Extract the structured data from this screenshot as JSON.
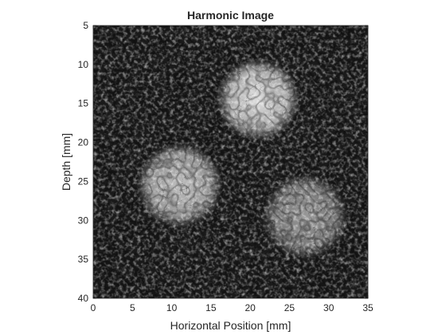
{
  "chart_data": {
    "type": "heatmap",
    "title": "Harmonic Image",
    "xlabel": "Horizontal Position [mm]",
    "ylabel": "Depth [mm]",
    "xlim": [
      0,
      35
    ],
    "ylim": [
      5,
      40
    ],
    "y_reversed": true,
    "xticks": [
      0,
      5,
      10,
      15,
      20,
      25,
      30,
      35
    ],
    "yticks": [
      5,
      10,
      15,
      20,
      25,
      30,
      35,
      40
    ],
    "colormap": "gray",
    "background_level": 0.12,
    "bright_regions": [
      {
        "center_x": 21,
        "center_y": 14.5,
        "radius": 5.3,
        "level": 0.85
      },
      {
        "center_x": 11,
        "center_y": 25.5,
        "radius": 5.5,
        "level": 0.72
      },
      {
        "center_x": 27,
        "center_y": 29.5,
        "radius": 5.5,
        "level": 0.55
      }
    ]
  },
  "colors": {
    "axis": "#262626",
    "background": "#ffffff"
  }
}
